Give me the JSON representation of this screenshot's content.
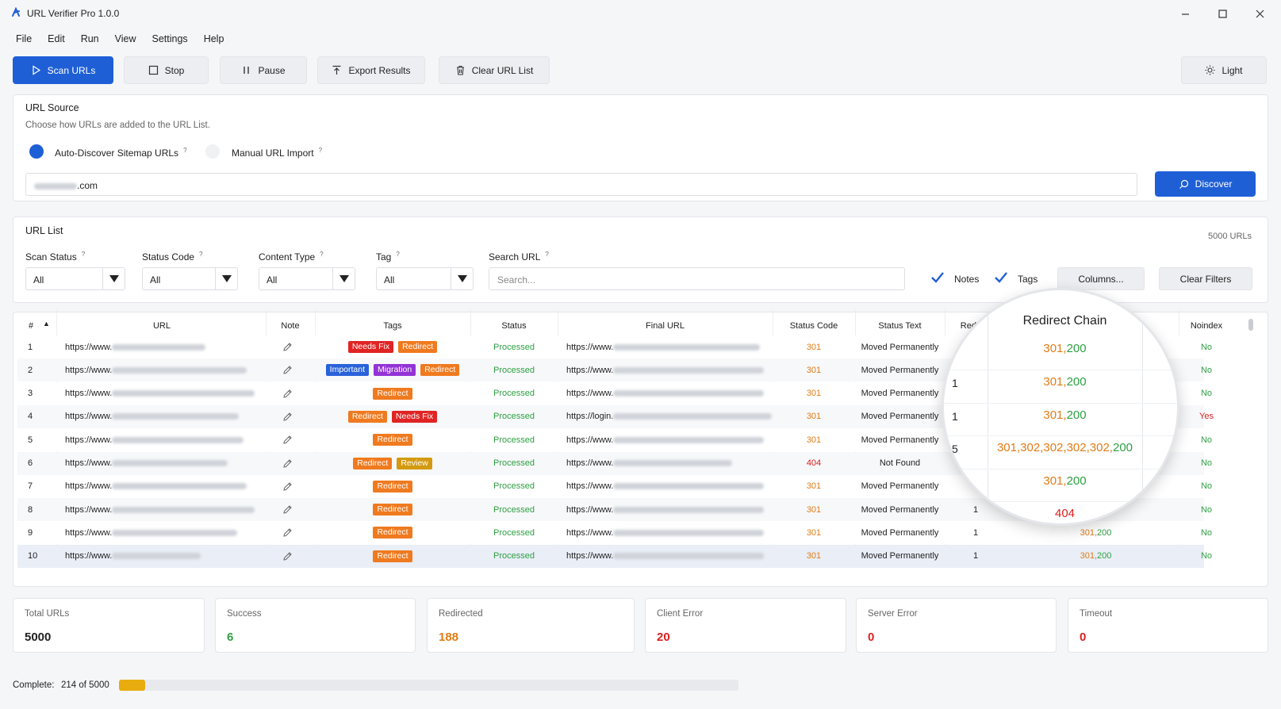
{
  "app": {
    "title": "URL Verifier Pro 1.0.0"
  },
  "menu": [
    "File",
    "Edit",
    "Run",
    "View",
    "Settings",
    "Help"
  ],
  "toolbar": {
    "scan": "Scan URLs",
    "stop": "Stop",
    "pause": "Pause",
    "export": "Export Results",
    "clear": "Clear URL List",
    "theme": "Light"
  },
  "url_source": {
    "title": "URL Source",
    "subtitle": "Choose how URLs are added to the URL List.",
    "option_auto": "Auto-Discover Sitemap URLs",
    "option_manual": "Manual URL Import",
    "selected": "Auto-Discover Sitemap URLs",
    "domain_suffix": ".com",
    "discover_button": "Discover"
  },
  "url_list": {
    "title": "URL List",
    "count": "5000 URLs",
    "filters": {
      "scan_status": {
        "label": "Scan Status",
        "value": "All"
      },
      "status_code": {
        "label": "Status Code",
        "value": "All"
      },
      "content_type": {
        "label": "Content Type",
        "value": "All"
      },
      "tag": {
        "label": "Tag",
        "value": "All"
      },
      "search": {
        "label": "Search URL",
        "placeholder": "Search..."
      }
    },
    "notes_checkbox": {
      "label": "Notes",
      "checked": true
    },
    "tags_checkbox": {
      "label": "Tags",
      "checked": true
    },
    "columns_button": "Columns...",
    "clear_filters_button": "Clear Filters"
  },
  "table": {
    "columns": [
      "#",
      "URL",
      "Note",
      "Tags",
      "Status",
      "Final URL",
      "Status Code",
      "Status Text",
      "Redirects",
      "Redirect Chain",
      "Noindex"
    ],
    "sort_indicator": "▲",
    "tag_colors": {
      "Needs Fix": "#e02424",
      "Redirect": "#f07a1f",
      "Important": "#2962d9",
      "Migration": "#9333d6",
      "Review": "#d39a10"
    },
    "rows": [
      {
        "n": "1",
        "url": "https://www.",
        "tags": [
          "Needs Fix",
          "Redirect"
        ],
        "status": "Processed",
        "final": "https://www.",
        "code": "301",
        "text": "Moved Permanently",
        "redirects": "1",
        "chain": "301,200",
        "noindex": "No"
      },
      {
        "n": "2",
        "url": "https://www.",
        "tags": [
          "Important",
          "Migration",
          "Redirect"
        ],
        "status": "Processed",
        "final": "https://www.",
        "code": "301",
        "text": "Moved Permanently",
        "redirects": "1",
        "chain": "301,200",
        "noindex": "No"
      },
      {
        "n": "3",
        "url": "https://www.",
        "tags": [
          "Redirect"
        ],
        "status": "Processed",
        "final": "https://www.",
        "code": "301",
        "text": "Moved Permanently",
        "redirects": "1",
        "chain": "301,200",
        "noindex": "No"
      },
      {
        "n": "4",
        "url": "https://www.",
        "tags": [
          "Redirect",
          "Needs Fix"
        ],
        "status": "Processed",
        "final": "https://login.",
        "code": "301",
        "text": "Moved Permanently",
        "redirects": "1",
        "chain": "301,200",
        "noindex": "Yes"
      },
      {
        "n": "5",
        "url": "https://www.",
        "tags": [
          "Redirect"
        ],
        "status": "Processed",
        "final": "https://www.",
        "code": "301",
        "text": "Moved Permanently",
        "redirects": "5",
        "chain": "301,302,302,302,302,200",
        "noindex": "No"
      },
      {
        "n": "6",
        "url": "https://www.",
        "tags": [
          "Redirect",
          "Review"
        ],
        "status": "Processed",
        "final": "https://www.",
        "code": "404",
        "text": "Not Found",
        "redirects": "0",
        "chain": "404",
        "noindex": "No"
      },
      {
        "n": "7",
        "url": "https://www.",
        "tags": [
          "Redirect"
        ],
        "status": "Processed",
        "final": "https://www.",
        "code": "301",
        "text": "Moved Permanently",
        "redirects": "1",
        "chain": "301,200",
        "noindex": "No"
      },
      {
        "n": "8",
        "url": "https://www.",
        "tags": [
          "Redirect"
        ],
        "status": "Processed",
        "final": "https://www.",
        "code": "301",
        "text": "Moved Permanently",
        "redirects": "1",
        "chain": "301,200",
        "noindex": "No"
      },
      {
        "n": "9",
        "url": "https://www.",
        "tags": [
          "Redirect"
        ],
        "status": "Processed",
        "final": "https://www.",
        "code": "301",
        "text": "Moved Permanently",
        "redirects": "1",
        "chain": "301,200",
        "noindex": "No"
      },
      {
        "n": "10",
        "url": "https://www.",
        "tags": [
          "Redirect"
        ],
        "status": "Processed",
        "final": "https://www.",
        "code": "301",
        "text": "Moved Permanently",
        "redirects": "1",
        "chain": "301,200",
        "noindex": "No"
      }
    ],
    "selected_row": "10"
  },
  "magnifier": {
    "header": "Redirect Chain",
    "left_values": [
      "1",
      "1",
      "5"
    ],
    "chains": [
      "301,200",
      "301,200",
      "301,200",
      "301,302,302,302,302,200",
      "301,200",
      "404"
    ]
  },
  "summary": [
    {
      "label": "Total URLs",
      "value": "5000",
      "color": "#222222"
    },
    {
      "label": "Success",
      "value": "6",
      "color": "#2ea043"
    },
    {
      "label": "Redirected",
      "value": "188",
      "color": "#e07c16"
    },
    {
      "label": "Client Error",
      "value": "20",
      "color": "#d92020"
    },
    {
      "label": "Server Error",
      "value": "0",
      "color": "#d92020"
    },
    {
      "label": "Timeout",
      "value": "0",
      "color": "#d92020"
    }
  ],
  "progress": {
    "label": "Complete:",
    "text": "214 of 5000",
    "done": 214,
    "total": 5000
  },
  "colors": {
    "accent": "#1f5fd6",
    "success": "#2ea043",
    "redirect": "#e07c16",
    "error": "#d92020",
    "progress": "#e8ac0f"
  }
}
